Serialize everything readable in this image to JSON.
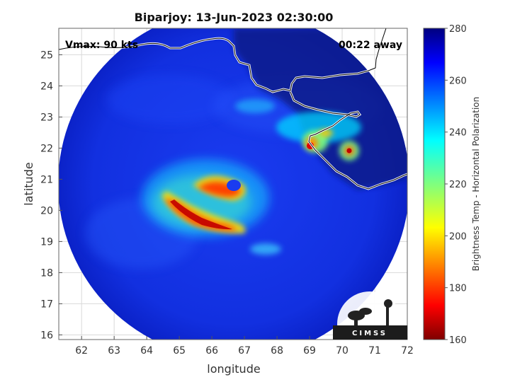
{
  "title": "Biparjoy: 13-Jun-2023 02:30:00",
  "annotations": {
    "vmax": "Vmax: 90 kts",
    "time_offset": "00:22 away"
  },
  "axes": {
    "xlabel": "longitude",
    "ylabel": "latitude",
    "xlim": [
      61.3,
      72
    ],
    "ylim": [
      15.85,
      25.85
    ],
    "xticks": [
      "62",
      "63",
      "64",
      "65",
      "66",
      "67",
      "68",
      "69",
      "70",
      "71",
      "72"
    ],
    "yticks": [
      "16",
      "17",
      "18",
      "19",
      "20",
      "21",
      "22",
      "23",
      "24",
      "25"
    ],
    "grid": true
  },
  "colorbar": {
    "label": "Brightness Temp - Horizontal Polarization",
    "range": [
      160,
      280
    ],
    "ticks": [
      "160",
      "180",
      "200",
      "220",
      "240",
      "260",
      "280"
    ],
    "colormap": "jet"
  },
  "logo": {
    "text": "CIMSS"
  },
  "map_data": {
    "storm_center": {
      "lon": 66.4,
      "lat": 20.5
    },
    "swath_center": {
      "lon": 66.7,
      "lat": 20.4
    },
    "coastline_color": "#ffffff",
    "background_temp": 268,
    "features": [
      {
        "name": "northeast eyewall",
        "lon": 66.1,
        "lat": 20.7,
        "temp": 178
      },
      {
        "name": "southern rainband",
        "lon": 65.5,
        "lat": 19.5,
        "temp": 170
      },
      {
        "name": "coastal convection",
        "lon": 69.2,
        "lat": 22.3,
        "temp": 190
      },
      {
        "name": "inland convection",
        "lon": 70.2,
        "lat": 21.9,
        "temp": 180
      }
    ]
  }
}
